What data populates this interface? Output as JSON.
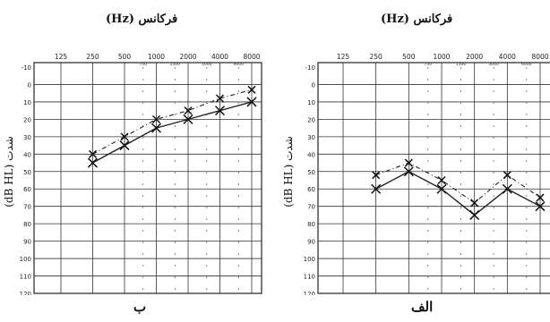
{
  "chart_data": [
    {
      "type": "line",
      "panel_label": "ب",
      "title": "فرکانس (Hz)",
      "ylabel": "شدت (dB HL)",
      "xlabel": "",
      "x_ticks_major": [
        "125",
        "250",
        "500",
        "1000",
        "2000",
        "4000",
        "8000"
      ],
      "x_ticks_minor": [
        "750",
        "1500",
        "3000",
        "6000"
      ],
      "y_ticks": [
        "-10",
        "0",
        "10",
        "20",
        "30",
        "40",
        "50",
        "60",
        "70",
        "80",
        "90",
        "100",
        "110",
        "120"
      ],
      "ylim": [
        -10,
        120
      ],
      "y_inverted": true,
      "series": [
        {
          "style": "solid",
          "marker": "x",
          "x": [
            "250",
            "500",
            "1000",
            "2000",
            "4000",
            "8000"
          ],
          "values": [
            45,
            35,
            25,
            20,
            15,
            10
          ]
        },
        {
          "style": "dashed",
          "marker": "x",
          "x": [
            "250",
            "500",
            "1000",
            "2000",
            "4000",
            "8000"
          ],
          "values": [
            40,
            30,
            20,
            15,
            8,
            3
          ]
        }
      ]
    },
    {
      "type": "line",
      "panel_label": "الف",
      "title": "فرکانس (Hz)",
      "ylabel": "شدت (dB HL)",
      "xlabel": "",
      "x_ticks_major": [
        "125",
        "250",
        "500",
        "1000",
        "2000",
        "4000",
        "8000"
      ],
      "x_ticks_minor": [
        "750",
        "1500",
        "3000",
        "6000"
      ],
      "y_ticks": [
        "-10",
        "0",
        "10",
        "20",
        "30",
        "40",
        "50",
        "60",
        "70",
        "80",
        "90",
        "100",
        "110",
        "120"
      ],
      "ylim": [
        -10,
        120
      ],
      "y_inverted": true,
      "series": [
        {
          "style": "solid",
          "marker": "x",
          "x": [
            "250",
            "500",
            "1000",
            "2000",
            "4000",
            "8000"
          ],
          "values": [
            60,
            50,
            60,
            75,
            60,
            70
          ]
        },
        {
          "style": "dashed",
          "marker": "x",
          "x": [
            "250",
            "500",
            "1000",
            "2000",
            "4000",
            "8000"
          ],
          "values": [
            52,
            45,
            55,
            68,
            52,
            65
          ]
        }
      ]
    }
  ]
}
